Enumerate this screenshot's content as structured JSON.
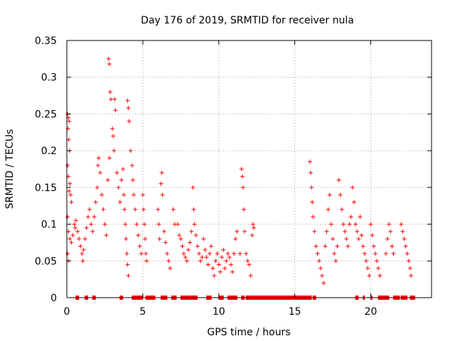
{
  "chart_data": {
    "type": "scatter",
    "title": "Day 176 of 2019, SRMTID for receiver nula",
    "xlabel": "GPS time / hours",
    "ylabel": "SRMTID / TECUs",
    "xlim": [
      0,
      24
    ],
    "ylim": [
      0,
      0.35
    ],
    "xticks": [
      0,
      5,
      10,
      15,
      20
    ],
    "xtick_labels": [
      "0",
      "5",
      "10",
      "15",
      "20"
    ],
    "yticks": [
      0,
      0.05,
      0.1,
      0.15,
      0.2,
      0.25,
      0.3,
      0.35
    ],
    "ytick_labels": [
      "0",
      "0.05",
      "0.1",
      "0.15",
      "0.2",
      "0.25",
      "0.3",
      "0.35"
    ],
    "grid": true,
    "marker": "+",
    "color": "#ff0000",
    "series": [
      {
        "name": "SRMTID",
        "points": [
          [
            0.05,
            0.25
          ],
          [
            0.1,
            0.245
          ],
          [
            0.15,
            0.24
          ],
          [
            0.08,
            0.23
          ],
          [
            0.12,
            0.215
          ],
          [
            0.18,
            0.2
          ],
          [
            0.05,
            0.18
          ],
          [
            0.1,
            0.165
          ],
          [
            0.2,
            0.155
          ],
          [
            0.15,
            0.145
          ],
          [
            0.25,
            0.14
          ],
          [
            0.3,
            0.13
          ],
          [
            0.05,
            0.11
          ],
          [
            0.1,
            0.09
          ],
          [
            0.2,
            0.08
          ],
          [
            0.05,
            0.06
          ],
          [
            0.1,
            0.05
          ],
          [
            0.3,
            0.075
          ],
          [
            0.4,
            0.085
          ],
          [
            0.5,
            0.1
          ],
          [
            0.55,
            0.095
          ],
          [
            0.6,
            0.105
          ],
          [
            0.7,
            0.09
          ],
          [
            0.8,
            0.08
          ],
          [
            0.9,
            0.07
          ],
          [
            1.0,
            0.06
          ],
          [
            1.05,
            0.05
          ],
          [
            1.1,
            0.065
          ],
          [
            1.2,
            0.08
          ],
          [
            1.3,
            0.095
          ],
          [
            1.4,
            0.11
          ],
          [
            1.5,
            0.12
          ],
          [
            1.6,
            0.1
          ],
          [
            1.7,
            0.09
          ],
          [
            1.8,
            0.11
          ],
          [
            1.9,
            0.13
          ],
          [
            2.0,
            0.15
          ],
          [
            2.05,
            0.18
          ],
          [
            2.1,
            0.19
          ],
          [
            2.2,
            0.17
          ],
          [
            2.3,
            0.14
          ],
          [
            2.4,
            0.12
          ],
          [
            2.5,
            0.1
          ],
          [
            2.6,
            0.085
          ],
          [
            2.7,
            0.16
          ],
          [
            2.8,
            0.19
          ],
          [
            2.75,
            0.325
          ],
          [
            2.8,
            0.318
          ],
          [
            2.85,
            0.28
          ],
          [
            2.9,
            0.27
          ],
          [
            3.0,
            0.23
          ],
          [
            3.05,
            0.22
          ],
          [
            3.1,
            0.2
          ],
          [
            3.15,
            0.27
          ],
          [
            3.2,
            0.255
          ],
          [
            3.3,
            0.17
          ],
          [
            3.4,
            0.15
          ],
          [
            3.5,
            0.13
          ],
          [
            3.6,
            0.16
          ],
          [
            3.7,
            0.175
          ],
          [
            3.75,
            0.14
          ],
          [
            3.8,
            0.12
          ],
          [
            3.85,
            0.1
          ],
          [
            3.9,
            0.08
          ],
          [
            3.95,
            0.06
          ],
          [
            4.0,
            0.045
          ],
          [
            4.05,
            0.03
          ],
          [
            4.0,
            0.268
          ],
          [
            4.05,
            0.258
          ],
          [
            4.1,
            0.24
          ],
          [
            4.2,
            0.2
          ],
          [
            4.3,
            0.18
          ],
          [
            4.35,
            0.16
          ],
          [
            4.4,
            0.14
          ],
          [
            4.5,
            0.12
          ],
          [
            4.6,
            0.1
          ],
          [
            4.7,
            0.085
          ],
          [
            4.8,
            0.07
          ],
          [
            4.9,
            0.06
          ],
          [
            5.0,
            0.14
          ],
          [
            5.05,
            0.12
          ],
          [
            5.1,
            0.1
          ],
          [
            5.15,
            0.08
          ],
          [
            5.2,
            0.06
          ],
          [
            5.25,
            0.05
          ],
          [
            6.0,
            0.12
          ],
          [
            6.05,
            0.1
          ],
          [
            6.1,
            0.08
          ],
          [
            6.2,
            0.155
          ],
          [
            6.25,
            0.17
          ],
          [
            6.3,
            0.14
          ],
          [
            6.4,
            0.09
          ],
          [
            6.5,
            0.075
          ],
          [
            6.6,
            0.06
          ],
          [
            6.7,
            0.05
          ],
          [
            6.8,
            0.04
          ],
          [
            7.0,
            0.12
          ],
          [
            7.1,
            0.1
          ],
          [
            7.3,
            0.1
          ],
          [
            7.4,
            0.085
          ],
          [
            7.5,
            0.08
          ],
          [
            7.6,
            0.07
          ],
          [
            7.7,
            0.06
          ],
          [
            7.8,
            0.055
          ],
          [
            7.9,
            0.05
          ],
          [
            8.0,
            0.065
          ],
          [
            8.1,
            0.075
          ],
          [
            8.2,
            0.09
          ],
          [
            8.3,
            0.15
          ],
          [
            8.35,
            0.12
          ],
          [
            8.4,
            0.1
          ],
          [
            8.5,
            0.085
          ],
          [
            8.6,
            0.07
          ],
          [
            8.7,
            0.06
          ],
          [
            8.8,
            0.05
          ],
          [
            8.9,
            0.055
          ],
          [
            9.0,
            0.08
          ],
          [
            9.1,
            0.065
          ],
          [
            9.2,
            0.055
          ],
          [
            9.3,
            0.045
          ],
          [
            9.4,
            0.06
          ],
          [
            9.5,
            0.07
          ],
          [
            9.6,
            0.04
          ],
          [
            9.7,
            0.03
          ],
          [
            9.8,
            0.05
          ],
          [
            9.9,
            0.06
          ],
          [
            10.0,
            0.045
          ],
          [
            10.1,
            0.035
          ],
          [
            10.2,
            0.055
          ],
          [
            10.3,
            0.065
          ],
          [
            10.4,
            0.04
          ],
          [
            10.5,
            0.05
          ],
          [
            10.6,
            0.06
          ],
          [
            10.7,
            0.055
          ],
          [
            10.8,
            0.045
          ],
          [
            10.9,
            0.035
          ],
          [
            11.0,
            0.06
          ],
          [
            11.1,
            0.08
          ],
          [
            11.2,
            0.09
          ],
          [
            11.4,
            0.06
          ],
          [
            11.5,
            0.175
          ],
          [
            11.55,
            0.165
          ],
          [
            11.6,
            0.15
          ],
          [
            11.65,
            0.12
          ],
          [
            11.7,
            0.09
          ],
          [
            11.8,
            0.06
          ],
          [
            11.9,
            0.05
          ],
          [
            12.0,
            0.045
          ],
          [
            12.1,
            0.03
          ],
          [
            12.2,
            0.085
          ],
          [
            12.25,
            0.1
          ],
          [
            12.3,
            0.095
          ],
          [
            16.0,
            0.185
          ],
          [
            16.05,
            0.17
          ],
          [
            16.1,
            0.15
          ],
          [
            16.15,
            0.13
          ],
          [
            16.2,
            0.11
          ],
          [
            16.3,
            0.09
          ],
          [
            16.4,
            0.07
          ],
          [
            16.5,
            0.06
          ],
          [
            16.6,
            0.05
          ],
          [
            16.7,
            0.04
          ],
          [
            16.8,
            0.03
          ],
          [
            16.9,
            0.02
          ],
          [
            17.0,
            0.07
          ],
          [
            17.1,
            0.09
          ],
          [
            17.2,
            0.12
          ],
          [
            17.3,
            0.14
          ],
          [
            17.4,
            0.1
          ],
          [
            17.5,
            0.08
          ],
          [
            17.6,
            0.06
          ],
          [
            17.7,
            0.05
          ],
          [
            17.8,
            0.07
          ],
          [
            17.9,
            0.16
          ],
          [
            18.0,
            0.14
          ],
          [
            18.1,
            0.12
          ],
          [
            18.2,
            0.1
          ],
          [
            18.3,
            0.09
          ],
          [
            18.4,
            0.08
          ],
          [
            18.5,
            0.07
          ],
          [
            18.6,
            0.1
          ],
          [
            18.7,
            0.11
          ],
          [
            18.8,
            0.15
          ],
          [
            18.9,
            0.13
          ],
          [
            19.0,
            0.1
          ],
          [
            19.1,
            0.09
          ],
          [
            19.2,
            0.08
          ],
          [
            19.3,
            0.11
          ],
          [
            19.4,
            0.085
          ],
          [
            19.5,
            0.07
          ],
          [
            19.6,
            0.06
          ],
          [
            19.7,
            0.05
          ],
          [
            19.8,
            0.04
          ],
          [
            19.9,
            0.03
          ],
          [
            20.0,
            0.1
          ],
          [
            20.1,
            0.085
          ],
          [
            20.2,
            0.07
          ],
          [
            20.3,
            0.06
          ],
          [
            20.4,
            0.05
          ],
          [
            20.5,
            0.04
          ],
          [
            20.6,
            0.03
          ],
          [
            21.0,
            0.06
          ],
          [
            21.1,
            0.08
          ],
          [
            21.2,
            0.1
          ],
          [
            21.3,
            0.09
          ],
          [
            21.4,
            0.07
          ],
          [
            21.5,
            0.06
          ],
          [
            22.0,
            0.1
          ],
          [
            22.1,
            0.09
          ],
          [
            22.2,
            0.08
          ],
          [
            22.3,
            0.07
          ],
          [
            22.4,
            0.06
          ],
          [
            22.5,
            0.05
          ],
          [
            22.6,
            0.04
          ],
          [
            22.65,
            0.03
          ]
        ],
        "zero_segments": [
          [
            0.6,
            0.8
          ],
          [
            1.2,
            1.4
          ],
          [
            1.7,
            1.9
          ],
          [
            3.5,
            3.7
          ],
          [
            4.3,
            5.0
          ],
          [
            5.2,
            5.8
          ],
          [
            6.2,
            6.6
          ],
          [
            6.9,
            7.2
          ],
          [
            7.5,
            8.6
          ],
          [
            9.2,
            9.5
          ],
          [
            10.0,
            10.3
          ],
          [
            10.6,
            11.2
          ],
          [
            11.5,
            11.7
          ],
          [
            11.8,
            16.1
          ],
          [
            16.2,
            16.4
          ],
          [
            19.0,
            19.2
          ],
          [
            19.5,
            19.6
          ],
          [
            20.0,
            20.1
          ],
          [
            20.5,
            21.2
          ],
          [
            21.5,
            21.9
          ],
          [
            22.0,
            22.4
          ],
          [
            22.6,
            22.9
          ]
        ]
      }
    ]
  }
}
